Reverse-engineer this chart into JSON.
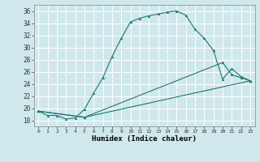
{
  "xlabel": "Humidex (Indice chaleur)",
  "xlim": [
    -0.5,
    23.5
  ],
  "ylim": [
    17,
    37
  ],
  "xticks": [
    0,
    1,
    2,
    3,
    4,
    5,
    6,
    7,
    8,
    9,
    10,
    11,
    12,
    13,
    14,
    15,
    16,
    17,
    18,
    19,
    20,
    21,
    22,
    23
  ],
  "yticks": [
    18,
    20,
    22,
    24,
    26,
    28,
    30,
    32,
    34,
    36
  ],
  "background_color": "#cfe8ec",
  "grid_color": "#ffffff",
  "line_color": "#1a7a6e",
  "line1_x": [
    0,
    1,
    2,
    3,
    4,
    5,
    6,
    7,
    8,
    9,
    10,
    11,
    12,
    13,
    14,
    15,
    16,
    17,
    18,
    19,
    20,
    21,
    22,
    23
  ],
  "line1_y": [
    19.5,
    18.8,
    18.8,
    18.2,
    18.4,
    19.8,
    22.5,
    25.0,
    28.5,
    31.5,
    34.2,
    34.8,
    35.2,
    35.5,
    35.8,
    36.0,
    35.3,
    33.0,
    31.5,
    29.5,
    24.8,
    26.5,
    25.2,
    24.5
  ],
  "line2_x": [
    0,
    5,
    20,
    21,
    22,
    23
  ],
  "line2_y": [
    19.5,
    18.5,
    27.5,
    25.5,
    25.0,
    24.5
  ],
  "line3_x": [
    0,
    5,
    23
  ],
  "line3_y": [
    19.5,
    18.5,
    24.5
  ]
}
